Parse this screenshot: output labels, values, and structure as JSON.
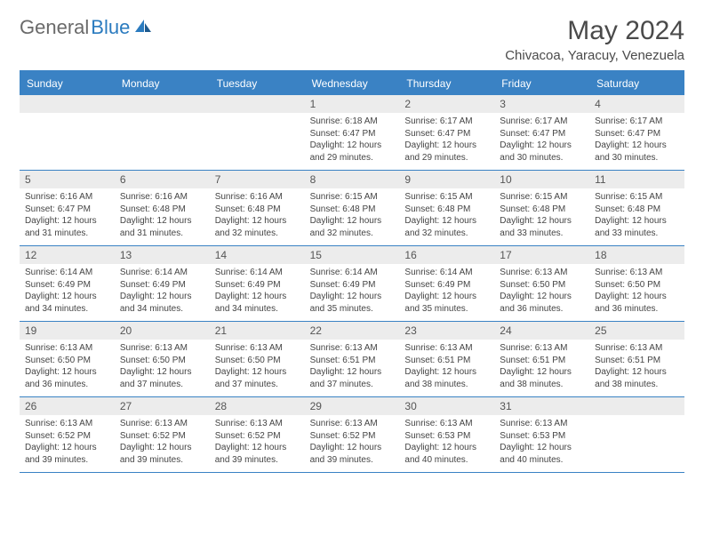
{
  "logo": {
    "part1": "General",
    "part2": "Blue"
  },
  "title": "May 2024",
  "location": "Chivacoa, Yaracuy, Venezuela",
  "colors": {
    "header_bg": "#3a82c4",
    "header_text": "#ffffff",
    "daynum_bg": "#ececec",
    "body_text": "#444444",
    "rule": "#3a82c4"
  },
  "typography": {
    "title_fontsize": 30,
    "location_fontsize": 15,
    "dayheader_fontsize": 12,
    "cell_fontsize": 10
  },
  "day_names": [
    "Sunday",
    "Monday",
    "Tuesday",
    "Wednesday",
    "Thursday",
    "Friday",
    "Saturday"
  ],
  "weeks": [
    [
      {
        "day": "",
        "sunrise": "",
        "sunset": "",
        "daylight": ""
      },
      {
        "day": "",
        "sunrise": "",
        "sunset": "",
        "daylight": ""
      },
      {
        "day": "",
        "sunrise": "",
        "sunset": "",
        "daylight": ""
      },
      {
        "day": "1",
        "sunrise": "Sunrise: 6:18 AM",
        "sunset": "Sunset: 6:47 PM",
        "daylight": "Daylight: 12 hours and 29 minutes."
      },
      {
        "day": "2",
        "sunrise": "Sunrise: 6:17 AM",
        "sunset": "Sunset: 6:47 PM",
        "daylight": "Daylight: 12 hours and 29 minutes."
      },
      {
        "day": "3",
        "sunrise": "Sunrise: 6:17 AM",
        "sunset": "Sunset: 6:47 PM",
        "daylight": "Daylight: 12 hours and 30 minutes."
      },
      {
        "day": "4",
        "sunrise": "Sunrise: 6:17 AM",
        "sunset": "Sunset: 6:47 PM",
        "daylight": "Daylight: 12 hours and 30 minutes."
      }
    ],
    [
      {
        "day": "5",
        "sunrise": "Sunrise: 6:16 AM",
        "sunset": "Sunset: 6:47 PM",
        "daylight": "Daylight: 12 hours and 31 minutes."
      },
      {
        "day": "6",
        "sunrise": "Sunrise: 6:16 AM",
        "sunset": "Sunset: 6:48 PM",
        "daylight": "Daylight: 12 hours and 31 minutes."
      },
      {
        "day": "7",
        "sunrise": "Sunrise: 6:16 AM",
        "sunset": "Sunset: 6:48 PM",
        "daylight": "Daylight: 12 hours and 32 minutes."
      },
      {
        "day": "8",
        "sunrise": "Sunrise: 6:15 AM",
        "sunset": "Sunset: 6:48 PM",
        "daylight": "Daylight: 12 hours and 32 minutes."
      },
      {
        "day": "9",
        "sunrise": "Sunrise: 6:15 AM",
        "sunset": "Sunset: 6:48 PM",
        "daylight": "Daylight: 12 hours and 32 minutes."
      },
      {
        "day": "10",
        "sunrise": "Sunrise: 6:15 AM",
        "sunset": "Sunset: 6:48 PM",
        "daylight": "Daylight: 12 hours and 33 minutes."
      },
      {
        "day": "11",
        "sunrise": "Sunrise: 6:15 AM",
        "sunset": "Sunset: 6:48 PM",
        "daylight": "Daylight: 12 hours and 33 minutes."
      }
    ],
    [
      {
        "day": "12",
        "sunrise": "Sunrise: 6:14 AM",
        "sunset": "Sunset: 6:49 PM",
        "daylight": "Daylight: 12 hours and 34 minutes."
      },
      {
        "day": "13",
        "sunrise": "Sunrise: 6:14 AM",
        "sunset": "Sunset: 6:49 PM",
        "daylight": "Daylight: 12 hours and 34 minutes."
      },
      {
        "day": "14",
        "sunrise": "Sunrise: 6:14 AM",
        "sunset": "Sunset: 6:49 PM",
        "daylight": "Daylight: 12 hours and 34 minutes."
      },
      {
        "day": "15",
        "sunrise": "Sunrise: 6:14 AM",
        "sunset": "Sunset: 6:49 PM",
        "daylight": "Daylight: 12 hours and 35 minutes."
      },
      {
        "day": "16",
        "sunrise": "Sunrise: 6:14 AM",
        "sunset": "Sunset: 6:49 PM",
        "daylight": "Daylight: 12 hours and 35 minutes."
      },
      {
        "day": "17",
        "sunrise": "Sunrise: 6:13 AM",
        "sunset": "Sunset: 6:50 PM",
        "daylight": "Daylight: 12 hours and 36 minutes."
      },
      {
        "day": "18",
        "sunrise": "Sunrise: 6:13 AM",
        "sunset": "Sunset: 6:50 PM",
        "daylight": "Daylight: 12 hours and 36 minutes."
      }
    ],
    [
      {
        "day": "19",
        "sunrise": "Sunrise: 6:13 AM",
        "sunset": "Sunset: 6:50 PM",
        "daylight": "Daylight: 12 hours and 36 minutes."
      },
      {
        "day": "20",
        "sunrise": "Sunrise: 6:13 AM",
        "sunset": "Sunset: 6:50 PM",
        "daylight": "Daylight: 12 hours and 37 minutes."
      },
      {
        "day": "21",
        "sunrise": "Sunrise: 6:13 AM",
        "sunset": "Sunset: 6:50 PM",
        "daylight": "Daylight: 12 hours and 37 minutes."
      },
      {
        "day": "22",
        "sunrise": "Sunrise: 6:13 AM",
        "sunset": "Sunset: 6:51 PM",
        "daylight": "Daylight: 12 hours and 37 minutes."
      },
      {
        "day": "23",
        "sunrise": "Sunrise: 6:13 AM",
        "sunset": "Sunset: 6:51 PM",
        "daylight": "Daylight: 12 hours and 38 minutes."
      },
      {
        "day": "24",
        "sunrise": "Sunrise: 6:13 AM",
        "sunset": "Sunset: 6:51 PM",
        "daylight": "Daylight: 12 hours and 38 minutes."
      },
      {
        "day": "25",
        "sunrise": "Sunrise: 6:13 AM",
        "sunset": "Sunset: 6:51 PM",
        "daylight": "Daylight: 12 hours and 38 minutes."
      }
    ],
    [
      {
        "day": "26",
        "sunrise": "Sunrise: 6:13 AM",
        "sunset": "Sunset: 6:52 PM",
        "daylight": "Daylight: 12 hours and 39 minutes."
      },
      {
        "day": "27",
        "sunrise": "Sunrise: 6:13 AM",
        "sunset": "Sunset: 6:52 PM",
        "daylight": "Daylight: 12 hours and 39 minutes."
      },
      {
        "day": "28",
        "sunrise": "Sunrise: 6:13 AM",
        "sunset": "Sunset: 6:52 PM",
        "daylight": "Daylight: 12 hours and 39 minutes."
      },
      {
        "day": "29",
        "sunrise": "Sunrise: 6:13 AM",
        "sunset": "Sunset: 6:52 PM",
        "daylight": "Daylight: 12 hours and 39 minutes."
      },
      {
        "day": "30",
        "sunrise": "Sunrise: 6:13 AM",
        "sunset": "Sunset: 6:53 PM",
        "daylight": "Daylight: 12 hours and 40 minutes."
      },
      {
        "day": "31",
        "sunrise": "Sunrise: 6:13 AM",
        "sunset": "Sunset: 6:53 PM",
        "daylight": "Daylight: 12 hours and 40 minutes."
      },
      {
        "day": "",
        "sunrise": "",
        "sunset": "",
        "daylight": ""
      }
    ]
  ]
}
